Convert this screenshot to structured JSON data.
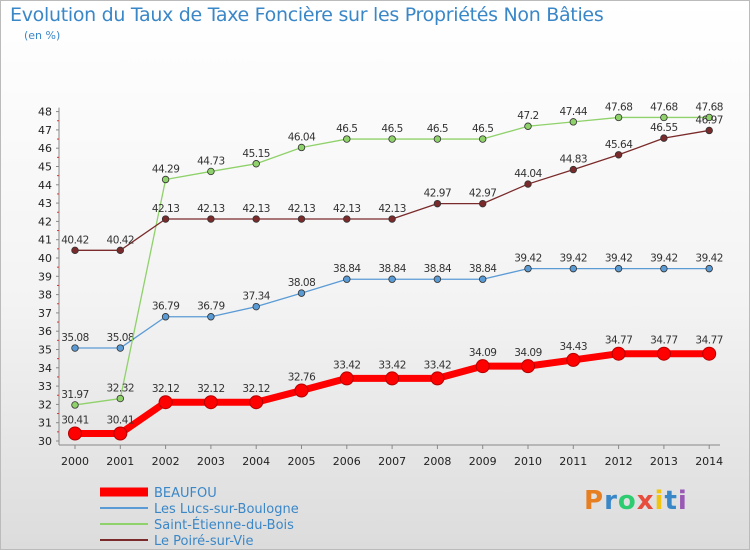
{
  "header": {
    "title": "Evolution du Taux de Taxe Foncière sur les Propriétés Non Bâties",
    "unit": "(en %)"
  },
  "logo": {
    "text": "Proxiti",
    "colors": [
      "#e67e22",
      "#3a87c8",
      "#2ecc71",
      "#e74c3c",
      "#f1c40f",
      "#3a87c8",
      "#9b59b6"
    ]
  },
  "chart_data": {
    "type": "line",
    "title": "Evolution du Taux de Taxe Foncière sur les Propriétés Non Bâties",
    "ylabel": "(en %)",
    "xlabel": "",
    "ylim": [
      30,
      48
    ],
    "grid": false,
    "legend_position": "bottom-left",
    "categories": [
      "2000",
      "2001",
      "2002",
      "2003",
      "2004",
      "2005",
      "2006",
      "2007",
      "2008",
      "2009",
      "2010",
      "2011",
      "2012",
      "2013",
      "2014"
    ],
    "y_ticks": [
      "30",
      "31",
      "32",
      "33",
      "34",
      "35",
      "36",
      "37",
      "38",
      "39",
      "40",
      "41",
      "42",
      "43",
      "44",
      "45",
      "46",
      "47",
      "48"
    ],
    "series": [
      {
        "name": "BEAUFOU",
        "color": "#ff0000",
        "values": [
          30.41,
          30.41,
          32.12,
          32.12,
          32.12,
          32.76,
          33.42,
          33.42,
          33.42,
          34.09,
          34.09,
          34.43,
          34.77,
          34.77,
          34.77
        ],
        "labels": [
          "30.41",
          "30.41",
          "32.12",
          "32.12",
          "32.12",
          "32.76",
          "33.42",
          "33.42",
          "33.42",
          "34.09",
          "34.09",
          "34.43",
          "34.77",
          "34.77",
          "34.77"
        ]
      },
      {
        "name": "Les Lucs-sur-Boulogne",
        "color": "#5b9bd5",
        "values": [
          35.08,
          35.08,
          36.79,
          36.79,
          37.34,
          38.08,
          38.84,
          38.84,
          38.84,
          38.84,
          39.42,
          39.42,
          39.42,
          39.42,
          39.42
        ],
        "labels": [
          "35.08",
          "35.08",
          "36.79",
          "36.79",
          "37.34",
          "38.08",
          "38.84",
          "38.84",
          "38.84",
          "38.84",
          "39.42",
          "39.42",
          "39.42",
          "39.42",
          "39.42"
        ]
      },
      {
        "name": "Saint-Étienne-du-Bois",
        "color": "#8fd16a",
        "values": [
          31.97,
          32.32,
          44.29,
          44.73,
          45.15,
          46.04,
          46.5,
          46.5,
          46.5,
          46.5,
          47.2,
          47.44,
          47.68,
          47.68,
          47.68
        ],
        "labels": [
          "31.97",
          "32.32",
          "44.29",
          "44.73",
          "45.15",
          "46.04",
          "46.5",
          "46.5",
          "46.5",
          "46.5",
          "47.2",
          "47.44",
          "47.68",
          "47.68",
          "47.68"
        ]
      },
      {
        "name": "Le Poiré-sur-Vie",
        "color": "#7a2a2a",
        "values": [
          40.42,
          40.42,
          42.13,
          42.13,
          42.13,
          42.13,
          42.13,
          42.13,
          42.97,
          42.97,
          44.04,
          44.83,
          45.64,
          46.55,
          46.97
        ],
        "labels": [
          "40.42",
          "40.42",
          "42.13",
          "42.13",
          "42.13",
          "42.13",
          "42.13",
          "42.13",
          "42.97",
          "42.97",
          "44.04",
          "44.83",
          "45.64",
          "46.55",
          "46.97"
        ]
      }
    ]
  }
}
